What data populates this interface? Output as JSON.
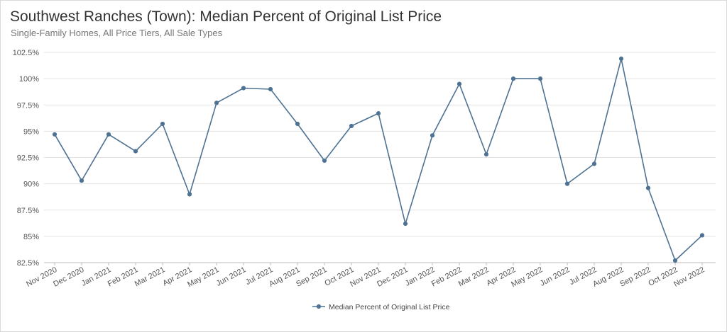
{
  "title": "Southwest Ranches (Town): Median Percent of Original List Price",
  "subtitle": "Single-Family Homes, All Price Tiers, All Sale Types",
  "chart_data": {
    "type": "line",
    "title": "Southwest Ranches (Town): Median Percent of Original List Price",
    "subtitle": "Single-Family Homes, All Price Tiers, All Sale Types",
    "xlabel": "",
    "ylabel": "",
    "categories": [
      "Nov 2020",
      "Dec 2020",
      "Jan 2021",
      "Feb 2021",
      "Mar 2021",
      "Apr 2021",
      "May 2021",
      "Jun 2021",
      "Jul 2021",
      "Aug 2021",
      "Sep 2021",
      "Oct 2021",
      "Nov 2021",
      "Dec 2021",
      "Jan 2022",
      "Feb 2022",
      "Mar 2022",
      "Apr 2022",
      "May 2022",
      "Jun 2022",
      "Jul 2022",
      "Aug 2022",
      "Sep 2022",
      "Oct 2022",
      "Nov 2022"
    ],
    "series": [
      {
        "name": "Median Percent of Original List Price",
        "color": "#4e7293",
        "values": [
          94.7,
          90.3,
          94.7,
          93.1,
          95.7,
          89.0,
          97.7,
          99.1,
          99.0,
          95.7,
          92.2,
          95.5,
          96.7,
          86.2,
          94.6,
          99.5,
          92.8,
          100.0,
          100.0,
          90.0,
          91.9,
          101.9,
          89.6,
          82.7,
          85.1
        ]
      }
    ],
    "ylim": [
      82.5,
      102.5
    ],
    "yticks": [
      82.5,
      85,
      87.5,
      90,
      92.5,
      95,
      97.5,
      100,
      102.5
    ],
    "ytick_labels": [
      "82.5%",
      "85%",
      "87.5%",
      "90%",
      "92.5%",
      "95%",
      "97.5%",
      "100%",
      "102.5%"
    ],
    "grid": true,
    "legend_position": "bottom-center"
  }
}
